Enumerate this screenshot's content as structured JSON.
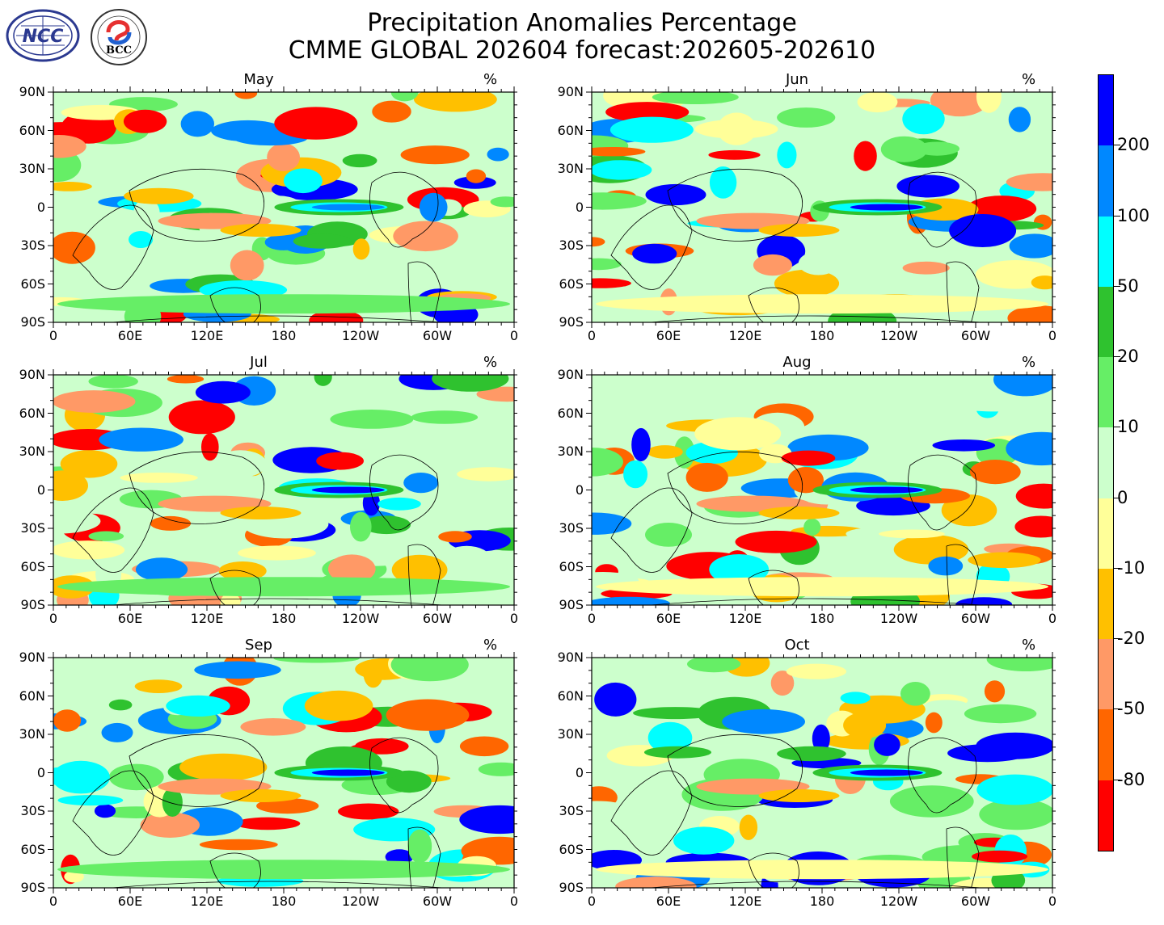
{
  "header": {
    "title_line1": "Precipitation Anomalies Percentage",
    "title_line2": "CMME GLOBAL 202604 forecast:202605-202610"
  },
  "logos": {
    "ncc_text": "NCC",
    "bcc_text": "BCC"
  },
  "units": "%",
  "panels": [
    {
      "month": "May"
    },
    {
      "month": "Jun"
    },
    {
      "month": "Jul"
    },
    {
      "month": "Aug"
    },
    {
      "month": "Sep"
    },
    {
      "month": "Oct"
    }
  ],
  "axes": {
    "lat_labels": [
      "90N",
      "60N",
      "30N",
      "0",
      "30S",
      "60S",
      "90S"
    ],
    "lon_labels": [
      "0",
      "60E",
      "120E",
      "180",
      "120W",
      "60W",
      "0"
    ]
  },
  "colorbar": {
    "labels": [
      "200",
      "100",
      "50",
      "20",
      "10",
      "0",
      "-10",
      "-20",
      "-50",
      "-80"
    ],
    "colors_top_to_bottom": [
      "#0000ff",
      "#0088ff",
      "#00ffff",
      "#2fc22f",
      "#66ee66",
      "#ccffcc",
      "#ffff99",
      "#ffc000",
      "#ff9966",
      "#ff6600",
      "#ff0000"
    ]
  }
}
